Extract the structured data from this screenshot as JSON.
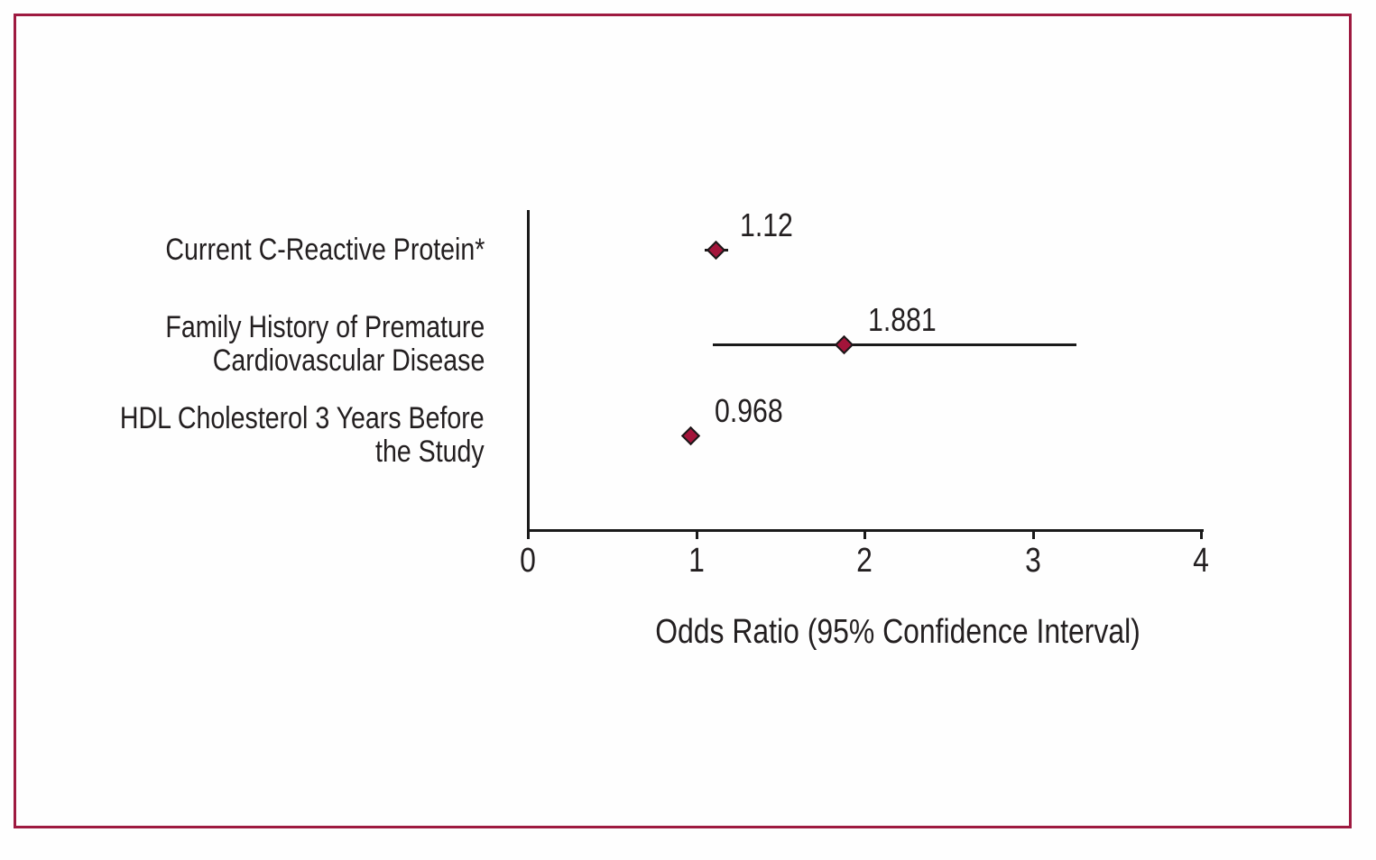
{
  "figure": {
    "border_color": "#9e1a40",
    "background_color": "#fefefe",
    "text_color": "#231f20"
  },
  "chart_data": {
    "type": "scatter",
    "variant": "forest-plot",
    "title": "",
    "xlabel": "Odds Ratio (95% Confidence Interval)",
    "ylabel": "",
    "xlim": [
      0,
      4
    ],
    "x_ticks": [
      "0",
      "1",
      "2",
      "3",
      "4"
    ],
    "grid": false,
    "legend": "none",
    "axis_color": "#1a1a1a",
    "marker": {
      "shape": "diamond",
      "fill": "#a3143a",
      "stroke": "#1a1a1a"
    },
    "rows": [
      {
        "label_lines": [
          "Current C-Reactive Protein*"
        ],
        "odds_ratio": 1.12,
        "ci_low": 1.05,
        "ci_high": 1.19,
        "value_label": "1.12"
      },
      {
        "label_lines": [
          "Family History of Premature",
          "Cardiovascular Disease"
        ],
        "odds_ratio": 1.881,
        "ci_low": 1.1,
        "ci_high": 3.26,
        "value_label": "1.881"
      },
      {
        "label_lines": [
          "HDL Cholesterol 3 Years Before",
          "the Study"
        ],
        "odds_ratio": 0.968,
        "ci_low": 0.94,
        "ci_high": 0.99,
        "value_label": "0.968"
      }
    ]
  }
}
